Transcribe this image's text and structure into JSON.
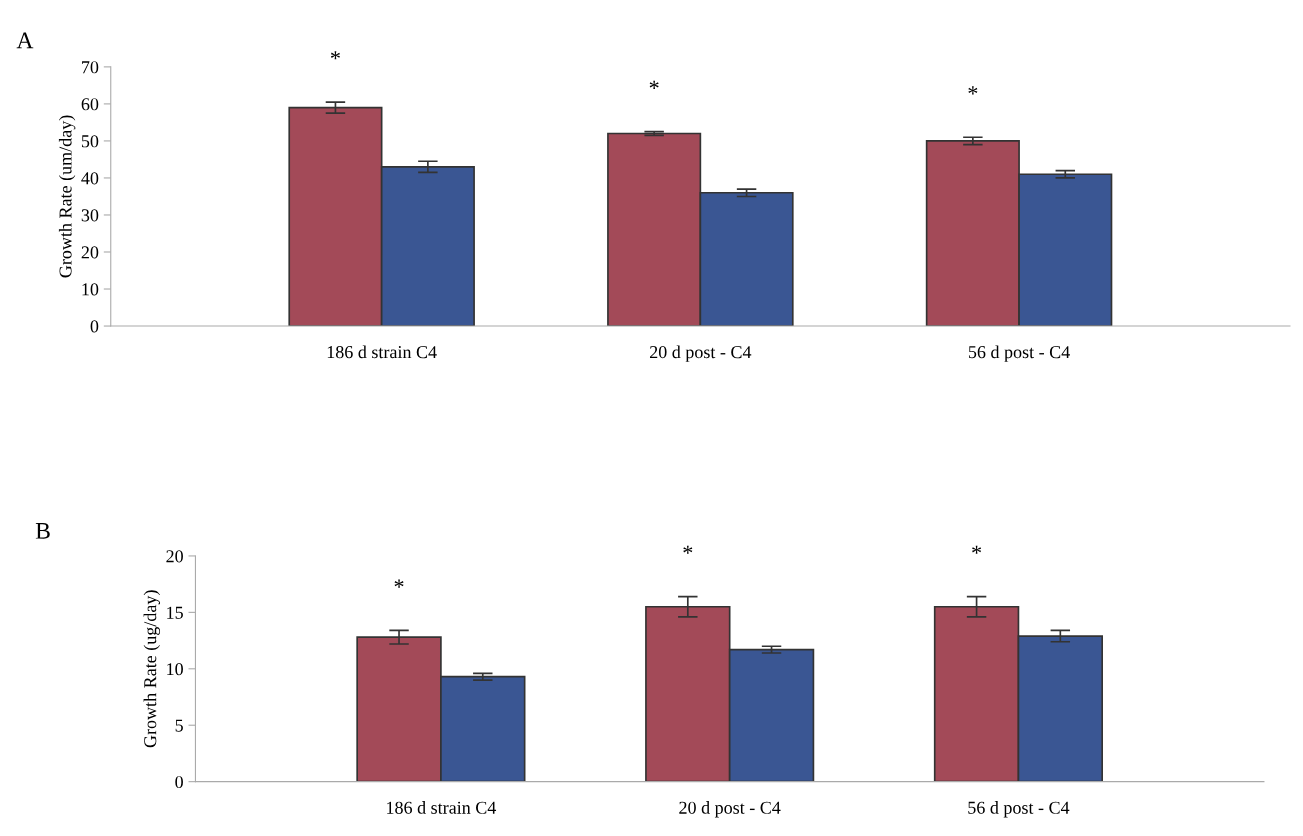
{
  "chart_data": [
    {
      "type": "bar",
      "title": "A",
      "ylabel": "Growth Rate (um/day)",
      "categories": [
        "186 d strain C4",
        "20 d post - C4",
        "56 d post - C4"
      ],
      "series": [
        {
          "color": "#a34a58",
          "values": [
            59,
            52,
            50
          ],
          "errors": [
            1.5,
            0.5,
            1
          ]
        },
        {
          "color": "#3a5693",
          "values": [
            43,
            36,
            41
          ],
          "errors": [
            1.5,
            1,
            1
          ]
        }
      ],
      "ylim": [
        0,
        70
      ],
      "yticks": [
        0,
        10,
        20,
        30,
        40,
        50,
        60,
        70
      ],
      "grid": false,
      "legend": false,
      "annotations": [
        "*",
        "*",
        "*"
      ]
    },
    {
      "type": "bar",
      "title": "B",
      "ylabel": "Growth Rate (ug/day)",
      "categories": [
        "186 d strain C4",
        "20 d post - C4",
        "56 d post - C4"
      ],
      "series": [
        {
          "color": "#a34a58",
          "values": [
            12.8,
            15.5,
            15.5
          ],
          "errors": [
            0.6,
            0.9,
            0.9
          ]
        },
        {
          "color": "#3a5693",
          "values": [
            9.3,
            11.7,
            12.9
          ],
          "errors": [
            0.3,
            0.3,
            0.5
          ]
        }
      ],
      "ylim": [
        0,
        20
      ],
      "yticks": [
        0,
        5,
        10,
        15,
        20
      ],
      "grid": false,
      "legend": false,
      "annotations": [
        "*",
        "*",
        "*"
      ]
    }
  ]
}
